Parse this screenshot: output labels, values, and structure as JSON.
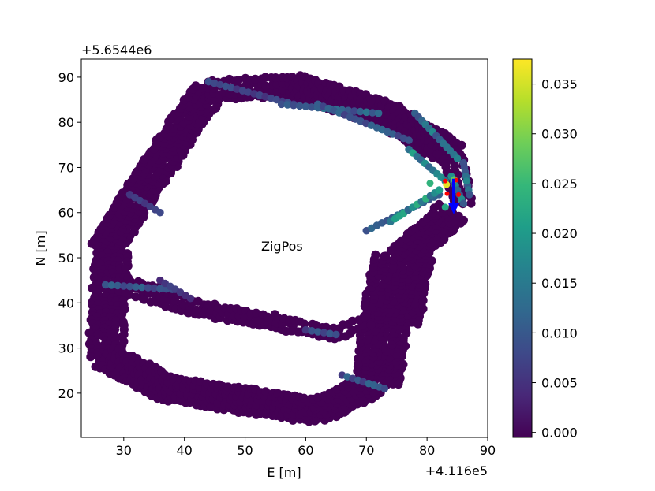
{
  "chart_data": {
    "type": "scatter",
    "title": "",
    "annotation": "ZigPos",
    "xlabel": "E [m]",
    "ylabel": "N [m]",
    "x_offset_label": "+4.116e5",
    "y_offset_label": "+5.6544e6",
    "xlim": [
      23.0,
      90.0
    ],
    "ylim": [
      10.2,
      94.0
    ],
    "x_ticks": [
      30,
      40,
      50,
      60,
      70,
      80,
      90
    ],
    "y_ticks": [
      20,
      30,
      40,
      50,
      60,
      70,
      80,
      90
    ],
    "grid": false,
    "colorbar": {
      "colormap": "viridis",
      "range": [
        -0.0005,
        0.0375
      ],
      "ticks": [
        "0.000",
        "0.005",
        "0.010",
        "0.015",
        "0.020",
        "0.025",
        "0.030",
        "0.035"
      ],
      "tick_values": [
        0.0,
        0.005,
        0.01,
        0.015,
        0.02,
        0.025,
        0.03,
        0.035
      ],
      "stops": [
        "#440154",
        "#482878",
        "#3e4989",
        "#31688e",
        "#26828e",
        "#1f9e89",
        "#35b779",
        "#6ece58",
        "#b5de2b",
        "#fde725"
      ]
    },
    "track": {
      "marker_color": "#440154",
      "band_segments": [
        {
          "from": [
            27,
            52
          ],
          "to": [
            33,
            65
          ],
          "width": 5
        },
        {
          "from": [
            33,
            65
          ],
          "to": [
            44,
            87
          ],
          "width": 5
        },
        {
          "from": [
            44,
            87
          ],
          "to": [
            58,
            88
          ],
          "width": 4
        },
        {
          "from": [
            58,
            88
          ],
          "to": [
            73,
            82
          ],
          "width": 5
        },
        {
          "from": [
            73,
            82
          ],
          "to": [
            84,
            73
          ],
          "width": 5
        },
        {
          "from": [
            84,
            73
          ],
          "to": [
            86,
            62
          ],
          "width": 3
        },
        {
          "from": [
            28,
            51
          ],
          "to": [
            27,
            28
          ],
          "width": 5
        },
        {
          "from": [
            27,
            28
          ],
          "to": [
            37,
            21
          ],
          "width": 5
        },
        {
          "from": [
            37,
            21
          ],
          "to": [
            62,
            16
          ],
          "width": 5
        },
        {
          "from": [
            62,
            16
          ],
          "to": [
            71,
            22
          ],
          "width": 5
        },
        {
          "from": [
            72,
            22
          ],
          "to": [
            73,
            37
          ],
          "width": 7
        },
        {
          "from": [
            74,
            36
          ],
          "to": [
            76,
            50
          ],
          "width": 9
        },
        {
          "from": [
            76,
            50
          ],
          "to": [
            84,
            60
          ],
          "width": 5
        },
        {
          "from": [
            30,
            44
          ],
          "to": [
            41,
            39
          ],
          "width": 3
        },
        {
          "from": [
            41,
            39
          ],
          "to": [
            58,
            35
          ],
          "width": 2.5
        },
        {
          "from": [
            58,
            35
          ],
          "to": [
            65,
            33
          ],
          "width": 2
        },
        {
          "from": [
            65,
            33
          ],
          "to": [
            70,
            36
          ],
          "width": 2
        }
      ],
      "isolated_points": [
        [
          25.8,
          33
        ]
      ],
      "highlight_segments": [
        {
          "from": [
            44,
            89
          ],
          "to": [
            58,
            84
          ],
          "value": 0.008
        },
        {
          "from": [
            56,
            84
          ],
          "to": [
            72,
            82
          ],
          "value": 0.012
        },
        {
          "from": [
            62,
            84
          ],
          "to": [
            77,
            76
          ],
          "value": 0.011
        },
        {
          "from": [
            78,
            82
          ],
          "to": [
            85,
            72
          ],
          "value": 0.015
        },
        {
          "from": [
            77,
            74
          ],
          "to": [
            83,
            67
          ],
          "value": 0.018
        },
        {
          "from": [
            70,
            56
          ],
          "to": [
            82,
            64
          ],
          "value": 0.012
        },
        {
          "from": [
            74,
            58
          ],
          "to": [
            82,
            65
          ],
          "value": 0.02
        },
        {
          "from": [
            31,
            64
          ],
          "to": [
            36,
            60
          ],
          "value": 0.007
        },
        {
          "from": [
            27,
            44
          ],
          "to": [
            38,
            43
          ],
          "value": 0.011
        },
        {
          "from": [
            36,
            45
          ],
          "to": [
            41,
            41
          ],
          "value": 0.006
        },
        {
          "from": [
            60,
            34
          ],
          "to": [
            65,
            33
          ],
          "value": 0.009
        },
        {
          "from": [
            66,
            24
          ],
          "to": [
            73,
            21
          ],
          "value": 0.01
        },
        {
          "from": [
            84,
            68
          ],
          "to": [
            86,
            62
          ],
          "value": 0.016
        },
        {
          "from": [
            86,
            71
          ],
          "to": [
            87,
            64
          ],
          "value": 0.013
        }
      ],
      "highlight_points": [
        {
          "x": 83.2,
          "y": 66.2,
          "value": 0.036
        },
        {
          "x": 84.5,
          "y": 67.3,
          "value": 0.028
        },
        {
          "x": 83.0,
          "y": 61.2,
          "value": 0.022
        },
        {
          "x": 80.5,
          "y": 66.5,
          "value": 0.024
        },
        {
          "x": 86.5,
          "y": 67.0,
          "value": 0.017
        }
      ],
      "red_markers": [
        [
          83.0,
          67.0
        ],
        [
          84.8,
          67.2
        ],
        [
          83.3,
          64.2
        ],
        [
          85.2,
          64.0
        ]
      ],
      "blue_arrow": {
        "from": [
          84.4,
          67.5
        ],
        "to": [
          84.4,
          60.0
        ]
      }
    }
  }
}
